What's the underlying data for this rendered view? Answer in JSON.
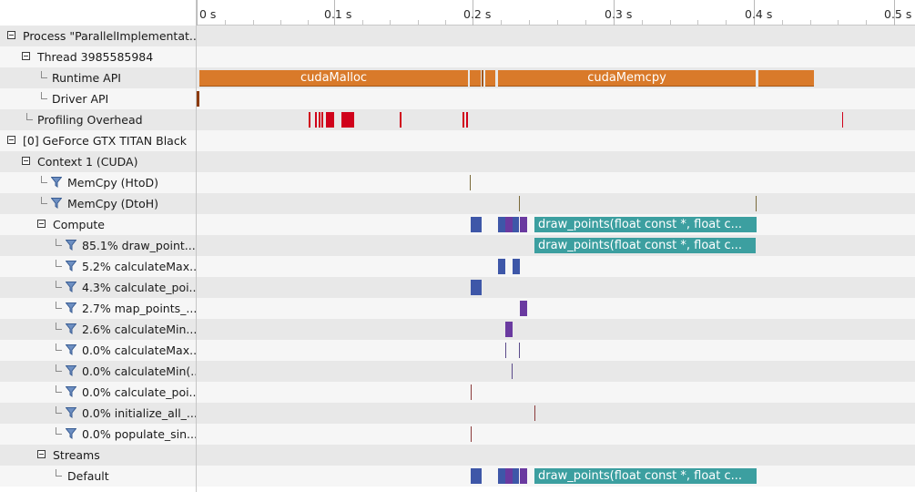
{
  "ruler": {
    "ticks": [
      "0 s",
      "0.1 s",
      "0.2 s",
      "0.3 s",
      "0.4 s",
      "0.5 s"
    ]
  },
  "tree": {
    "process": "Process \"ParallelImplementat...",
    "thread": "Thread 3985585984",
    "runtime_api": "Runtime API",
    "driver_api": "Driver API",
    "profiling_overhead": "Profiling Overhead",
    "gpu": "[0] GeForce GTX TITAN Black",
    "context": "Context 1 (CUDA)",
    "memcpy_htod": "MemCpy (HtoD)",
    "memcpy_dtoh": "MemCpy (DtoH)",
    "compute": "Compute",
    "kernels": [
      "85.1% draw_point...",
      "5.2% calculateMax...",
      "4.3% calculate_poi...",
      "2.7% map_points_...",
      "2.6% calculateMin...",
      "0.0% calculateMax...",
      "0.0% calculateMin(...",
      "0.0% calculate_poi...",
      "0.0% initialize_all_...",
      "0.0% populate_sin..."
    ],
    "streams": "Streams",
    "default_stream": "Default"
  },
  "timeline": {
    "cuda_malloc": "cudaMalloc",
    "cuda_memcpy": "cudaMemcpy",
    "draw_points": "draw_points(float const *, float c...",
    "draw_points_kernel": "draw_points(float const *, float c...",
    "draw_points_default": "draw_points(float const *, float c..."
  },
  "colors": {
    "runtime_api": "#d97a2a",
    "driver_api": "#8b3a0e",
    "overhead": "#d0021b",
    "kernel_blue": "#3e57a8",
    "kernel_purple": "#6a3aa0",
    "kernel_teal": "#3c9fa0",
    "memcpy_mark": "#7a6a3a",
    "row_odd": "#e8e8e8",
    "row_even": "#f6f6f6"
  }
}
